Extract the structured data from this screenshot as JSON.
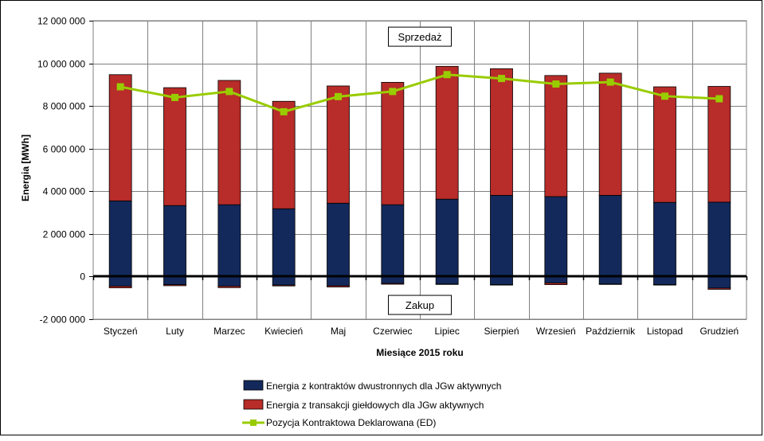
{
  "chart_data": {
    "type": "bar",
    "stacked": true,
    "xlabel": "Miesiące 2015  roku",
    "ylabel": "Energia  [MWh]",
    "ylim": [
      -2000000,
      12000000
    ],
    "yticks": [
      {
        "value": 12000000,
        "label": "12 000 000"
      },
      {
        "value": 10000000,
        "label": "10 000 000"
      },
      {
        "value": 8000000,
        "label": "8 000 000"
      },
      {
        "value": 6000000,
        "label": "6 000 000"
      },
      {
        "value": 4000000,
        "label": "4 000 000"
      },
      {
        "value": 2000000,
        "label": "2 000 000"
      },
      {
        "value": 0,
        "label": "0"
      },
      {
        "value": -2000000,
        "label": "-2 000 000"
      }
    ],
    "grid": true,
    "legend_position": "bottom",
    "categories": [
      "Styczeń",
      "Luty",
      "Marzec",
      "Kwiecień",
      "Maj",
      "Czerwiec",
      "Lipiec",
      "Sierpień",
      "Wrzesień",
      "Październik",
      "Listopad",
      "Grudzień"
    ],
    "series": [
      {
        "name": "Energia z kontraktów dwustronnych dla JGw aktywnych",
        "kind": "bar",
        "color": "#13295c",
        "values": [
          3550000,
          3330000,
          3370000,
          3180000,
          3440000,
          3370000,
          3630000,
          3810000,
          3750000,
          3810000,
          3480000,
          3490000
        ],
        "negative_values": [
          -450000,
          -380000,
          -450000,
          -400000,
          -430000,
          -320000,
          -350000,
          -380000,
          -300000,
          -350000,
          -380000,
          -540000
        ]
      },
      {
        "name": "Energia z transakcji giełdowych dla JGw aktywnych",
        "kind": "bar",
        "color": "#b82c29",
        "values": [
          5920000,
          5530000,
          5830000,
          5040000,
          5500000,
          5740000,
          6230000,
          5940000,
          5680000,
          5730000,
          5420000,
          5430000
        ],
        "negative_values": [
          -80000,
          -50000,
          -70000,
          -40000,
          -60000,
          -40000,
          -20000,
          -20000,
          -80000,
          -20000,
          -20000,
          -60000
        ]
      },
      {
        "name": "Pozycja Kontraktowa Deklarowana (ED)",
        "kind": "line",
        "color": "#99cc00",
        "values": [
          8900000,
          8400000,
          8680000,
          7730000,
          8440000,
          8680000,
          9470000,
          9290000,
          9030000,
          9120000,
          8460000,
          8340000
        ]
      }
    ],
    "annotations": [
      {
        "text": "Sprzedaż",
        "at_value": 11250000
      },
      {
        "text": "Zakup",
        "at_value": -1330000
      }
    ]
  }
}
